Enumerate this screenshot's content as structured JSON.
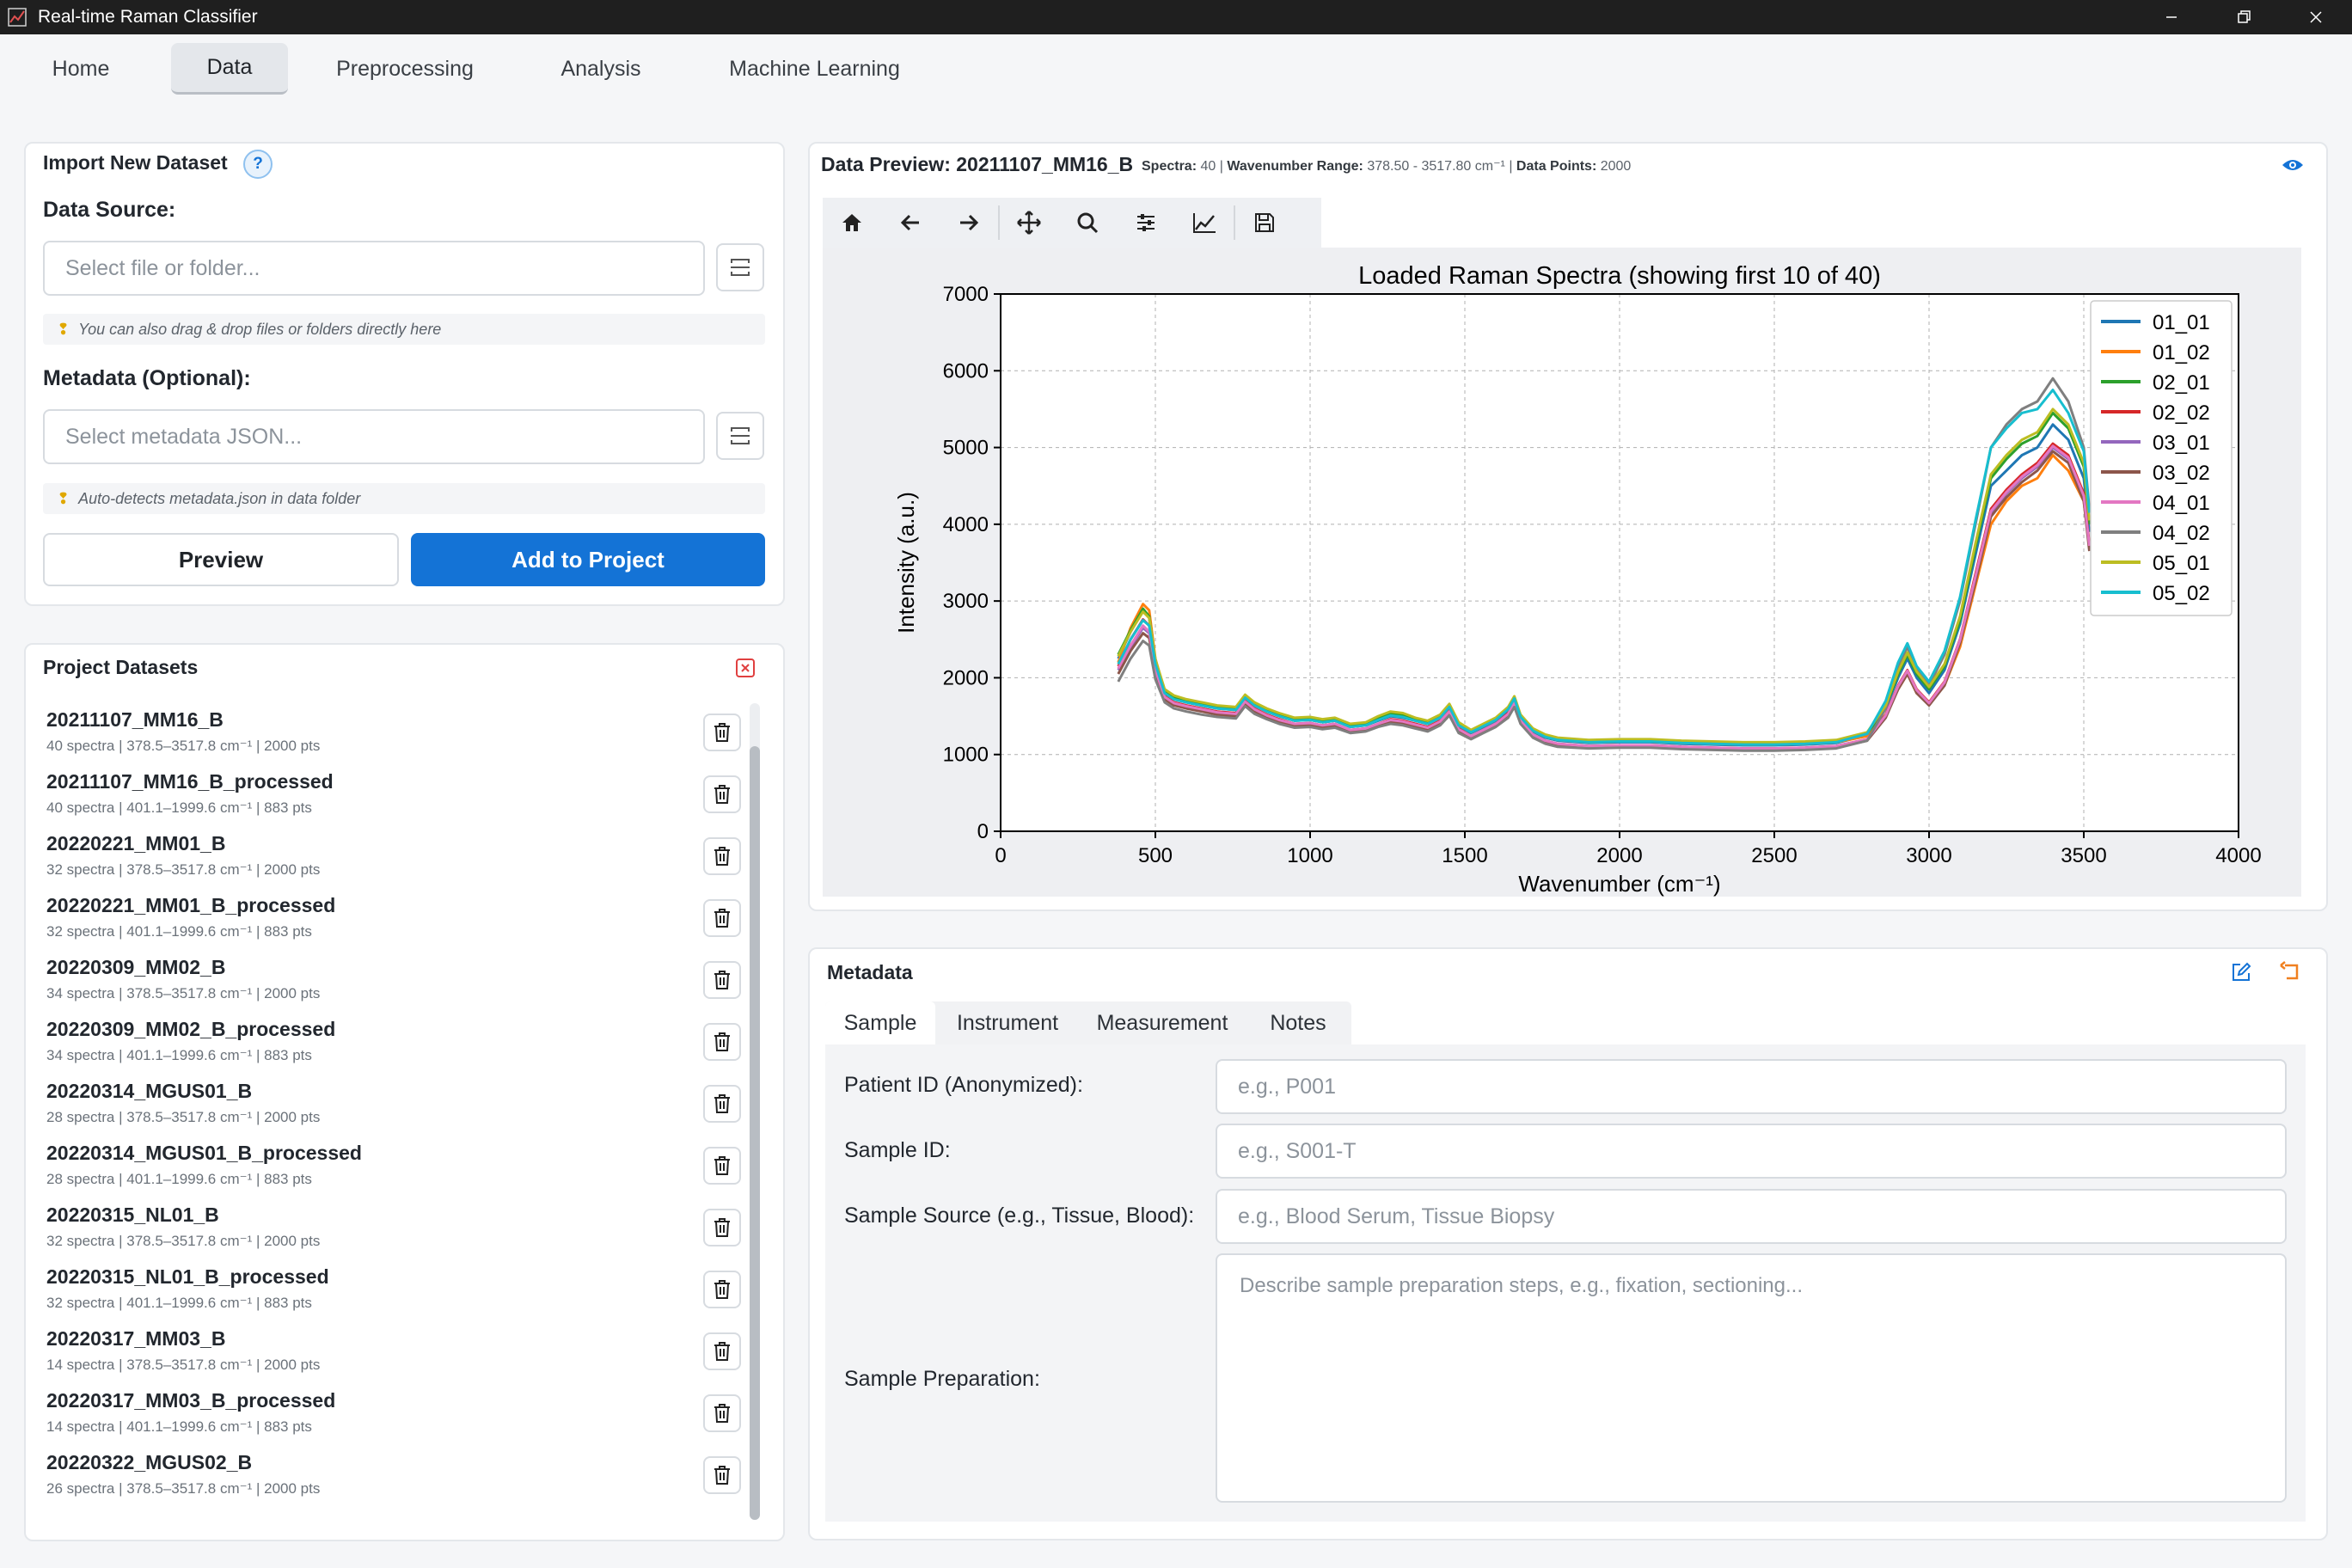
{
  "window": {
    "title": "Real-time Raman Classifier"
  },
  "nav": {
    "tabs": [
      "Home",
      "Data",
      "Preprocessing",
      "Analysis",
      "Machine Learning"
    ],
    "active": "Data"
  },
  "import": {
    "title": "Import New Dataset",
    "help": "?",
    "data_source_label": "Data Source:",
    "data_source_placeholder": "Select file or folder...",
    "data_source_hint": "You can also drag & drop files or folders directly here",
    "metadata_label": "Metadata (Optional):",
    "metadata_placeholder": "Select metadata JSON...",
    "metadata_hint": "Auto-detects metadata.json in data folder",
    "preview_button": "Preview",
    "add_button": "Add to Project"
  },
  "datasets": {
    "title": "Project Datasets",
    "items": [
      {
        "name": "20211107_MM16_B",
        "meta": "40 spectra | 378.5–3517.8 cm⁻¹ | 2000 pts"
      },
      {
        "name": "20211107_MM16_B_processed",
        "meta": "40 spectra | 401.1–1999.6 cm⁻¹ | 883 pts"
      },
      {
        "name": "20220221_MM01_B",
        "meta": "32 spectra | 378.5–3517.8 cm⁻¹ | 2000 pts"
      },
      {
        "name": "20220221_MM01_B_processed",
        "meta": "32 spectra | 401.1–1999.6 cm⁻¹ | 883 pts"
      },
      {
        "name": "20220309_MM02_B",
        "meta": "34 spectra | 378.5–3517.8 cm⁻¹ | 2000 pts"
      },
      {
        "name": "20220309_MM02_B_processed",
        "meta": "34 spectra | 401.1–1999.6 cm⁻¹ | 883 pts"
      },
      {
        "name": "20220314_MGUS01_B",
        "meta": "28 spectra | 378.5–3517.8 cm⁻¹ | 2000 pts"
      },
      {
        "name": "20220314_MGUS01_B_processed",
        "meta": "28 spectra | 401.1–1999.6 cm⁻¹ | 883 pts"
      },
      {
        "name": "20220315_NL01_B",
        "meta": "32 spectra | 378.5–3517.8 cm⁻¹ | 2000 pts"
      },
      {
        "name": "20220315_NL01_B_processed",
        "meta": "32 spectra | 401.1–1999.6 cm⁻¹ | 883 pts"
      },
      {
        "name": "20220317_MM03_B",
        "meta": "14 spectra | 378.5–3517.8 cm⁻¹ | 2000 pts"
      },
      {
        "name": "20220317_MM03_B_processed",
        "meta": "14 spectra | 401.1–1999.6 cm⁻¹ | 883 pts"
      },
      {
        "name": "20220322_MGUS02_B",
        "meta": "26 spectra | 378.5–3517.8 cm⁻¹ | 2000 pts"
      }
    ]
  },
  "preview": {
    "title": "Data Preview: 20211107_MM16_B",
    "spectra_label": "Spectra:",
    "spectra_value": "40",
    "range_label": "Wavenumber Range:",
    "range_value": "378.50 - 3517.80 cm⁻¹",
    "points_label": "Data Points:",
    "points_value": "2000",
    "toolbar": [
      "home-icon",
      "back-icon",
      "forward-icon",
      "pan-icon",
      "zoom-icon",
      "configure-icon",
      "edit-axis-icon",
      "save-icon"
    ]
  },
  "chart_data": {
    "type": "line",
    "title": "Loaded Raman Spectra (showing first 10 of 40)",
    "xlabel": "Wavenumber (cm⁻¹)",
    "ylabel": "Intensity (a.u.)",
    "xlim": [
      0,
      4000
    ],
    "ylim": [
      0,
      7000
    ],
    "xticks": [
      0,
      500,
      1000,
      1500,
      2000,
      2500,
      3000,
      3500,
      4000
    ],
    "yticks": [
      0,
      1000,
      2000,
      3000,
      4000,
      5000,
      6000,
      7000
    ],
    "grid": true,
    "legend_position": "top-right",
    "x": [
      380,
      420,
      460,
      480,
      500,
      530,
      560,
      600,
      650,
      700,
      760,
      790,
      820,
      860,
      900,
      950,
      1000,
      1040,
      1080,
      1130,
      1180,
      1220,
      1260,
      1300,
      1340,
      1380,
      1420,
      1450,
      1480,
      1520,
      1560,
      1600,
      1640,
      1660,
      1680,
      1720,
      1760,
      1800,
      1900,
      2000,
      2100,
      2200,
      2300,
      2400,
      2500,
      2600,
      2700,
      2800,
      2860,
      2900,
      2930,
      2960,
      3000,
      3050,
      3100,
      3150,
      3200,
      3250,
      3300,
      3350,
      3400,
      3450,
      3500,
      3518
    ],
    "series": [
      {
        "name": "01_01",
        "color": "#1f77b4",
        "values": [
          2250,
          2600,
          2880,
          2780,
          2200,
          1800,
          1720,
          1680,
          1640,
          1600,
          1580,
          1740,
          1640,
          1560,
          1500,
          1440,
          1450,
          1420,
          1440,
          1360,
          1380,
          1440,
          1500,
          1480,
          1440,
          1400,
          1480,
          1620,
          1380,
          1280,
          1360,
          1440,
          1580,
          1720,
          1480,
          1300,
          1220,
          1180,
          1150,
          1160,
          1160,
          1140,
          1130,
          1120,
          1120,
          1130,
          1150,
          1250,
          1600,
          2000,
          2250,
          2000,
          1800,
          2100,
          2700,
          3600,
          4500,
          4700,
          4900,
          5000,
          5300,
          5100,
          4600,
          3900
        ]
      },
      {
        "name": "01_02",
        "color": "#ff7f0e",
        "values": [
          2200,
          2650,
          2960,
          2880,
          2250,
          1820,
          1740,
          1690,
          1650,
          1610,
          1590,
          1760,
          1650,
          1570,
          1510,
          1450,
          1460,
          1430,
          1450,
          1370,
          1390,
          1460,
          1520,
          1500,
          1450,
          1410,
          1500,
          1650,
          1400,
          1290,
          1370,
          1450,
          1600,
          1740,
          1500,
          1310,
          1230,
          1190,
          1160,
          1170,
          1170,
          1150,
          1140,
          1130,
          1130,
          1140,
          1160,
          1240,
          1520,
          1850,
          2050,
          1800,
          1650,
          1900,
          2400,
          3200,
          4000,
          4300,
          4500,
          4600,
          4900,
          4700,
          4300,
          3700
        ]
      },
      {
        "name": "02_01",
        "color": "#2ca02c",
        "values": [
          2300,
          2620,
          2900,
          2800,
          2220,
          1830,
          1750,
          1700,
          1660,
          1620,
          1600,
          1760,
          1660,
          1580,
          1520,
          1460,
          1470,
          1440,
          1460,
          1380,
          1400,
          1470,
          1530,
          1510,
          1460,
          1420,
          1500,
          1640,
          1400,
          1300,
          1380,
          1460,
          1600,
          1750,
          1500,
          1320,
          1240,
          1200,
          1170,
          1180,
          1180,
          1160,
          1150,
          1140,
          1140,
          1150,
          1170,
          1270,
          1620,
          2050,
          2300,
          2050,
          1850,
          2150,
          2750,
          3700,
          4600,
          4850,
          5050,
          5150,
          5450,
          5250,
          4750,
          4000
        ]
      },
      {
        "name": "02_02",
        "color": "#d62728",
        "values": [
          2150,
          2500,
          2760,
          2680,
          2120,
          1760,
          1680,
          1640,
          1600,
          1560,
          1540,
          1700,
          1600,
          1520,
          1460,
          1400,
          1410,
          1380,
          1400,
          1320,
          1340,
          1400,
          1460,
          1440,
          1400,
          1360,
          1440,
          1570,
          1340,
          1240,
          1320,
          1400,
          1540,
          1680,
          1440,
          1260,
          1180,
          1140,
          1110,
          1120,
          1120,
          1100,
          1090,
          1080,
          1080,
          1090,
          1110,
          1200,
          1520,
          1900,
          2100,
          1850,
          1680,
          1950,
          2500,
          3350,
          4200,
          4450,
          4650,
          4800,
          5050,
          4900,
          4400,
          3750
        ]
      },
      {
        "name": "03_01",
        "color": "#9467bd",
        "values": [
          2100,
          2400,
          2650,
          2580,
          2080,
          1740,
          1660,
          1620,
          1580,
          1540,
          1520,
          1680,
          1580,
          1500,
          1440,
          1390,
          1400,
          1370,
          1390,
          1310,
          1330,
          1390,
          1440,
          1420,
          1380,
          1340,
          1420,
          1550,
          1320,
          1230,
          1310,
          1390,
          1520,
          1660,
          1430,
          1250,
          1170,
          1130,
          1100,
          1110,
          1110,
          1090,
          1080,
          1070,
          1070,
          1080,
          1100,
          1190,
          1500,
          1880,
          2080,
          1830,
          1660,
          1930,
          2480,
          3300,
          4150,
          4400,
          4600,
          4750,
          5000,
          4850,
          4350,
          3700
        ]
      },
      {
        "name": "03_02",
        "color": "#8c564b",
        "values": [
          2050,
          2350,
          2580,
          2520,
          2050,
          1720,
          1640,
          1600,
          1560,
          1520,
          1500,
          1660,
          1560,
          1480,
          1420,
          1370,
          1380,
          1350,
          1370,
          1300,
          1320,
          1380,
          1420,
          1400,
          1360,
          1320,
          1400,
          1530,
          1300,
          1220,
          1300,
          1380,
          1500,
          1640,
          1420,
          1240,
          1160,
          1120,
          1090,
          1100,
          1100,
          1080,
          1070,
          1060,
          1060,
          1070,
          1090,
          1180,
          1480,
          1850,
          2050,
          1800,
          1640,
          1900,
          2450,
          3250,
          4100,
          4350,
          4550,
          4700,
          4950,
          4800,
          4300,
          3650
        ]
      },
      {
        "name": "04_01",
        "color": "#e377c2",
        "values": [
          2120,
          2420,
          2680,
          2600,
          2100,
          1750,
          1670,
          1630,
          1590,
          1550,
          1530,
          1690,
          1590,
          1510,
          1450,
          1400,
          1410,
          1380,
          1400,
          1320,
          1340,
          1400,
          1450,
          1430,
          1390,
          1350,
          1430,
          1560,
          1330,
          1240,
          1320,
          1400,
          1530,
          1670,
          1440,
          1260,
          1180,
          1140,
          1110,
          1120,
          1120,
          1100,
          1090,
          1080,
          1080,
          1090,
          1110,
          1200,
          1510,
          1890,
          2090,
          1840,
          1670,
          1940,
          2490,
          3320,
          4170,
          4420,
          4620,
          4770,
          5020,
          4870,
          4370,
          3720
        ]
      },
      {
        "name": "04_02",
        "color": "#7f7f7f",
        "values": [
          1950,
          2250,
          2480,
          2420,
          1980,
          1680,
          1600,
          1560,
          1520,
          1490,
          1470,
          1630,
          1530,
          1460,
          1400,
          1350,
          1360,
          1330,
          1350,
          1280,
          1300,
          1360,
          1400,
          1380,
          1340,
          1300,
          1380,
          1510,
          1280,
          1200,
          1280,
          1360,
          1480,
          1620,
          1400,
          1220,
          1140,
          1100,
          1080,
          1090,
          1090,
          1070,
          1060,
          1050,
          1050,
          1060,
          1080,
          1180,
          1600,
          2150,
          2400,
          2100,
          1900,
          2300,
          3000,
          4000,
          5000,
          5300,
          5500,
          5600,
          5900,
          5600,
          5000,
          4200
        ]
      },
      {
        "name": "05_01",
        "color": "#bcbd22",
        "values": [
          2280,
          2600,
          2860,
          2780,
          2240,
          1850,
          1770,
          1720,
          1680,
          1640,
          1620,
          1780,
          1680,
          1600,
          1540,
          1480,
          1490,
          1460,
          1480,
          1400,
          1420,
          1500,
          1560,
          1540,
          1480,
          1440,
          1520,
          1660,
          1420,
          1320,
          1400,
          1480,
          1620,
          1760,
          1520,
          1340,
          1260,
          1220,
          1190,
          1200,
          1200,
          1180,
          1170,
          1160,
          1160,
          1170,
          1190,
          1290,
          1640,
          2080,
          2330,
          2080,
          1880,
          2180,
          2800,
          3750,
          4650,
          4900,
          5100,
          5200,
          5500,
          5300,
          4800,
          4050
        ]
      },
      {
        "name": "05_02",
        "color": "#17becf",
        "values": [
          2180,
          2500,
          2750,
          2680,
          2180,
          1800,
          1720,
          1680,
          1640,
          1600,
          1580,
          1740,
          1640,
          1560,
          1500,
          1440,
          1450,
          1420,
          1440,
          1360,
          1380,
          1450,
          1510,
          1490,
          1440,
          1400,
          1480,
          1620,
          1380,
          1290,
          1370,
          1450,
          1590,
          1730,
          1490,
          1310,
          1230,
          1190,
          1160,
          1170,
          1170,
          1150,
          1140,
          1130,
          1130,
          1140,
          1160,
          1270,
          1700,
          2200,
          2450,
          2150,
          1950,
          2350,
          3050,
          4050,
          5000,
          5250,
          5450,
          5500,
          5750,
          5450,
          4950,
          4150
        ]
      }
    ]
  },
  "metadata": {
    "title": "Metadata",
    "tabs": [
      "Sample",
      "Instrument",
      "Measurement",
      "Notes"
    ],
    "active_tab": "Sample",
    "fields": [
      {
        "label": "Patient ID (Anonymized):",
        "placeholder": "e.g., P001"
      },
      {
        "label": "Sample ID:",
        "placeholder": "e.g., S001-T"
      },
      {
        "label": "Sample Source (e.g., Tissue, Blood):",
        "placeholder": "e.g., Blood Serum, Tissue Biopsy"
      }
    ],
    "prep_label": "Sample Preparation:",
    "prep_placeholder": "Describe sample preparation steps, e.g., fixation, sectioning..."
  }
}
